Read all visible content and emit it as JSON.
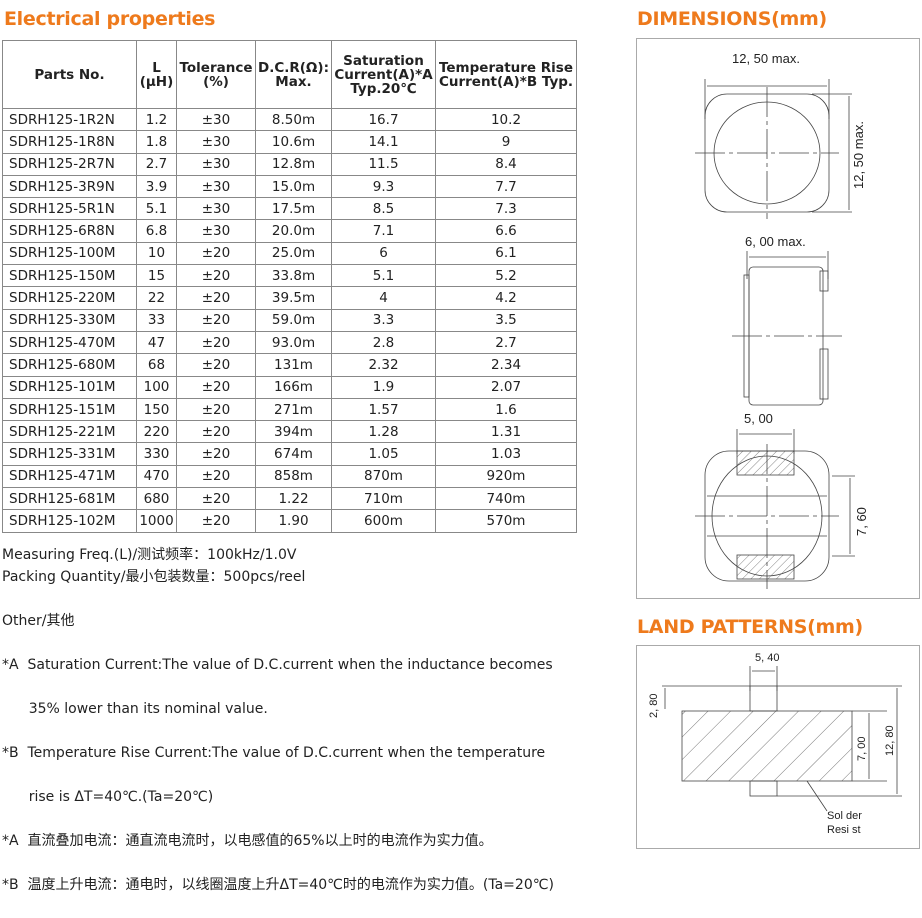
{
  "electrical": {
    "title": "Electrical properties",
    "headers": [
      "Parts  No.",
      "L\n(μH)",
      "Tolerance\n(%)",
      "D.C.R(Ω):\nMax.",
      "Saturation\nCurrent(A)*A\nTyp.20℃",
      "Temperature Rise\nCurrent(A)*B  Typ."
    ],
    "rows": [
      [
        "SDRH125-1R2N",
        "1.2",
        "±30",
        "8.50m",
        "16.7",
        "10.2"
      ],
      [
        "SDRH125-1R8N",
        "1.8",
        "±30",
        "10.6m",
        "14.1",
        "9"
      ],
      [
        "SDRH125-2R7N",
        "2.7",
        "±30",
        "12.8m",
        "11.5",
        "8.4"
      ],
      [
        "SDRH125-3R9N",
        "3.9",
        "±30",
        "15.0m",
        "9.3",
        "7.7"
      ],
      [
        "SDRH125-5R1N",
        "5.1",
        "±30",
        "17.5m",
        "8.5",
        "7.3"
      ],
      [
        "SDRH125-6R8N",
        "6.8",
        "±30",
        "20.0m",
        "7.1",
        "6.6"
      ],
      [
        "SDRH125-100M",
        "10",
        "±20",
        "25.0m",
        "6",
        "6.1"
      ],
      [
        "SDRH125-150M",
        "15",
        "±20",
        "33.8m",
        "5.1",
        "5.2"
      ],
      [
        "SDRH125-220M",
        "22",
        "±20",
        "39.5m",
        "4",
        "4.2"
      ],
      [
        "SDRH125-330M",
        "33",
        "±20",
        "59.0m",
        "3.3",
        "3.5"
      ],
      [
        "SDRH125-470M",
        "47",
        "±20",
        "93.0m",
        "2.8",
        "2.7"
      ],
      [
        "SDRH125-680M",
        "68",
        "±20",
        "131m",
        "2.32",
        "2.34"
      ],
      [
        "SDRH125-101M",
        "100",
        "±20",
        "166m",
        "1.9",
        "2.07"
      ],
      [
        "SDRH125-151M",
        "150",
        "±20",
        "271m",
        "1.57",
        "1.6"
      ],
      [
        "SDRH125-221M",
        "220",
        "±20",
        "394m",
        "1.28",
        "1.31"
      ],
      [
        "SDRH125-331M",
        "330",
        "±20",
        "674m",
        "1.05",
        "1.03"
      ],
      [
        "SDRH125-471M",
        "470",
        "±20",
        "858m",
        "870m",
        "920m"
      ],
      [
        "SDRH125-681M",
        "680",
        "±20",
        "1.22",
        "710m",
        "740m"
      ],
      [
        "SDRH125-102M",
        "1000",
        "±20",
        "1.90",
        "600m",
        "570m"
      ]
    ]
  },
  "measuring": "Measuring Freq.(L)/测试频率：100kHz/1.0V",
  "packing": "Packing Quantity/最小包装数量：500pcs/reel",
  "other_title": "Other/其他",
  "notes": [
    "*A  Saturation Current:The value of D.C.current when the inductance becomes",
    "      35% lower than its nominal value.",
    "*B  Temperature Rise Current:The value of D.C.current when the temperature",
    "      rise is ΔT=40℃.(Ta=20℃)",
    "*A  直流叠加电流：通直流电流时，以电感值的65%以上时的电流作为实力值。",
    "*B  温度上升电流：通电时，以线圈温度上升ΔT=40℃时的电流作为实力值。(Ta=20℃)"
  ],
  "dimensions": {
    "title": "DIMENSIONS(mm)",
    "width": "12, 50 max.",
    "height": "12, 50 max.",
    "thickness": "6, 00 max.",
    "pad_width": "5, 00",
    "pad_span": "7, 60"
  },
  "land": {
    "title": "LAND PATTERNS(mm)",
    "pad_w": "5, 40",
    "pad_h": "2, 80",
    "gap": "7, 00",
    "total": "12, 80",
    "solder": "Sol der",
    "resist": "Resi st"
  },
  "accent": "#ee7a1c"
}
